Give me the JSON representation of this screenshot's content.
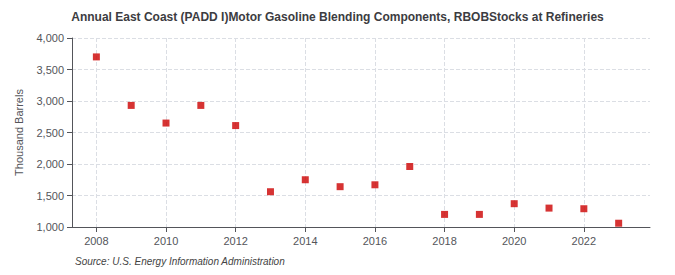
{
  "chart_data": {
    "type": "scatter",
    "title": "Annual East Coast (PADD I)Motor Gasoline Blending Components, RBOBStocks at Refineries",
    "ylabel": "Thousand Barrels",
    "source": "Source: U.S. Energy Information Administration",
    "x": [
      2008,
      2009,
      2010,
      2011,
      2012,
      2013,
      2014,
      2015,
      2016,
      2017,
      2018,
      2019,
      2020,
      2021,
      2022,
      2023
    ],
    "values": [
      3700,
      2930,
      2650,
      2930,
      2610,
      1560,
      1750,
      1640,
      1670,
      1960,
      1200,
      1200,
      1370,
      1300,
      1290,
      1060
    ],
    "color": "#cc0000",
    "marker": "square",
    "xlim": [
      2007.3,
      2023.9
    ],
    "xticks": [
      2008,
      2010,
      2012,
      2014,
      2016,
      2018,
      2020,
      2022
    ],
    "ylim": [
      1000,
      4000
    ],
    "yticks": [
      {
        "value": 1000,
        "label": "1,000"
      },
      {
        "value": 1500,
        "label": "1,500"
      },
      {
        "value": 2000,
        "label": "2,000"
      },
      {
        "value": 2500,
        "label": "2,500"
      },
      {
        "value": 3000,
        "label": "3,000"
      },
      {
        "value": 3500,
        "label": "3,500"
      },
      {
        "value": 4000,
        "label": "4,000"
      }
    ],
    "grid": true
  }
}
